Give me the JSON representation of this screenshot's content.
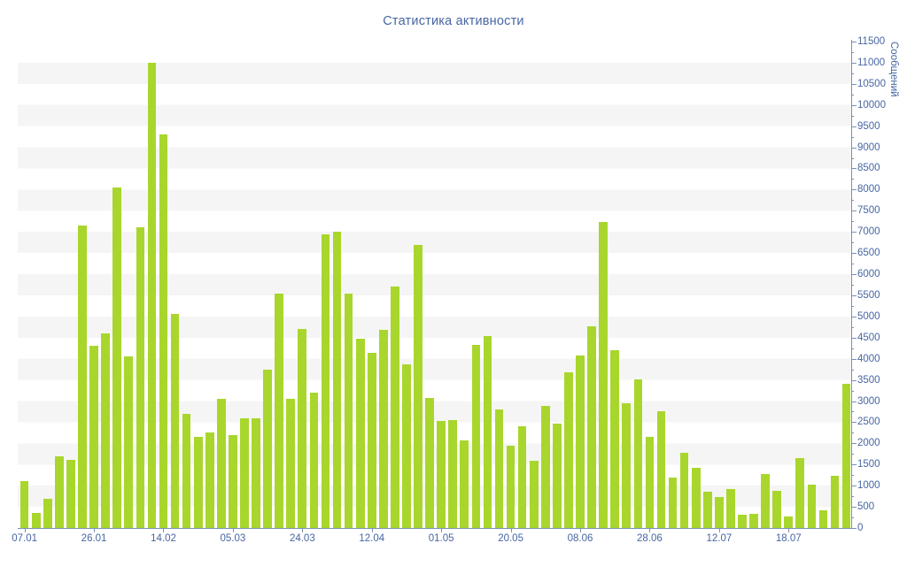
{
  "title": "Статистика активности",
  "y_axis": {
    "title": "Сообщений",
    "min": 0,
    "max": 11500,
    "step": 500,
    "minor_step": 250,
    "tick_labels": [
      "0",
      "500",
      "1000",
      "1500",
      "2000",
      "2500",
      "3000",
      "3500",
      "4000",
      "4500",
      "5000",
      "5500",
      "6000",
      "6500",
      "7000",
      "7500",
      "8000",
      "8500",
      "9000",
      "9500",
      "10000",
      "10500",
      "11000",
      "11500"
    ]
  },
  "x_axis": {
    "labels": [
      {
        "text": "07.01",
        "bar_index": 0
      },
      {
        "text": "26.01",
        "bar_index": 6
      },
      {
        "text": "14.02",
        "bar_index": 12
      },
      {
        "text": "05.03",
        "bar_index": 18
      },
      {
        "text": "24.03",
        "bar_index": 24
      },
      {
        "text": "12.04",
        "bar_index": 30
      },
      {
        "text": "01.05",
        "bar_index": 36
      },
      {
        "text": "20.05",
        "bar_index": 42
      },
      {
        "text": "08.06",
        "bar_index": 48
      },
      {
        "text": "28.06",
        "bar_index": 54
      },
      {
        "text": "12.07",
        "bar_index": 60
      },
      {
        "text": "18.07",
        "bar_index": 66
      }
    ]
  },
  "chart_data": {
    "type": "bar",
    "title": "Статистика активности",
    "xlabel": "",
    "ylabel": "Сообщений",
    "ylim": [
      0,
      11500
    ],
    "grid": "striped-bands-500",
    "legend": "none",
    "x_tick_labels": [
      "07.01",
      "26.01",
      "14.02",
      "05.03",
      "24.03",
      "12.04",
      "01.05",
      "20.05",
      "08.06",
      "28.06",
      "12.07",
      "18.07"
    ],
    "x_ticks_every_n_bars": 6,
    "values": [
      1100,
      350,
      680,
      1700,
      1600,
      7150,
      4300,
      4600,
      8050,
      4050,
      7100,
      11000,
      9300,
      5050,
      2700,
      2150,
      2250,
      3050,
      2200,
      2600,
      2600,
      3750,
      5550,
      3050,
      4700,
      3200,
      6950,
      7000,
      5550,
      4470,
      4130,
      4690,
      5700,
      3870,
      6700,
      3070,
      2520,
      2550,
      2080,
      4330,
      4540,
      2810,
      1940,
      2400,
      1580,
      2880,
      2470,
      3680,
      4070,
      4760,
      7230,
      4210,
      2950,
      3510,
      2150,
      2760,
      1200,
      1780,
      1420,
      860,
      740,
      930,
      320,
      340,
      1280,
      880,
      270,
      1650,
      1030,
      420,
      1230,
      3400
    ]
  },
  "colors": {
    "bar": "#a9d62c",
    "label": "#4766a3",
    "axis": "#7a90b8",
    "stripe": "#f5f5f5",
    "background": "#ffffff"
  }
}
